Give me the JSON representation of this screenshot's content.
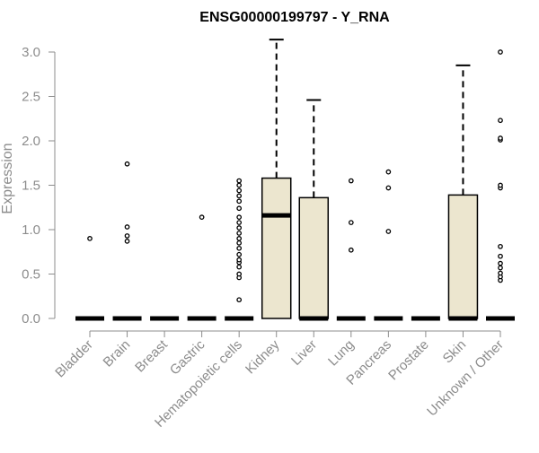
{
  "chart_data": {
    "type": "box",
    "title": "ENSG00000199797 - Y_RNA",
    "xlabel": "",
    "ylabel": "Expression",
    "ylim": [
      0,
      3.1
    ],
    "yticks": [
      "0.0",
      "0.5",
      "1.0",
      "1.5",
      "2.0",
      "2.5",
      "3.0"
    ],
    "grid": false,
    "box_fill": "#ece6cf",
    "box_stroke": "#000000",
    "axis_color": "#8c8c8c",
    "categories": [
      "Bladder",
      "Brain",
      "Breast",
      "Gastric",
      "Hematopoietic cells",
      "Kidney",
      "Liver",
      "Lung",
      "Pancreas",
      "Prostate",
      "Skin",
      "Unknown / Other"
    ],
    "boxes": [
      {
        "category": "Bladder",
        "q1": 0,
        "median": 0,
        "q3": 0,
        "whisker_low": 0,
        "whisker_high": 0,
        "outliers": [
          0.9
        ]
      },
      {
        "category": "Brain",
        "q1": 0,
        "median": 0,
        "q3": 0,
        "whisker_low": 0,
        "whisker_high": 0,
        "outliers": [
          0.87,
          0.93,
          1.03,
          1.74
        ]
      },
      {
        "category": "Breast",
        "q1": 0,
        "median": 0,
        "q3": 0,
        "whisker_low": 0,
        "whisker_high": 0,
        "outliers": []
      },
      {
        "category": "Gastric",
        "q1": 0,
        "median": 0,
        "q3": 0,
        "whisker_low": 0,
        "whisker_high": 0,
        "outliers": [
          1.14
        ]
      },
      {
        "category": "Hematopoietic cells",
        "q1": 0,
        "median": 0,
        "q3": 0,
        "whisker_low": 0,
        "whisker_high": 0,
        "outliers": [
          0.21,
          0.46,
          0.5,
          0.58,
          0.63,
          0.66,
          0.72,
          0.79,
          0.85,
          0.9,
          0.96,
          1.02,
          1.08,
          1.14,
          1.24,
          1.32,
          1.38,
          1.44,
          1.5,
          1.55
        ]
      },
      {
        "category": "Kidney",
        "q1": 0,
        "median": 1.16,
        "q3": 1.58,
        "whisker_low": 0,
        "whisker_high": 3.14,
        "outliers": []
      },
      {
        "category": "Liver",
        "q1": 0,
        "median": 0,
        "q3": 1.36,
        "whisker_low": 0,
        "whisker_high": 2.46,
        "outliers": []
      },
      {
        "category": "Lung",
        "q1": 0,
        "median": 0,
        "q3": 0,
        "whisker_low": 0,
        "whisker_high": 0,
        "outliers": [
          0.77,
          1.08,
          1.55
        ]
      },
      {
        "category": "Pancreas",
        "q1": 0,
        "median": 0,
        "q3": 0,
        "whisker_low": 0,
        "whisker_high": 0,
        "outliers": [
          0.98,
          1.47,
          1.65
        ]
      },
      {
        "category": "Prostate",
        "q1": 0,
        "median": 0,
        "q3": 0,
        "whisker_low": 0,
        "whisker_high": 0,
        "outliers": []
      },
      {
        "category": "Skin",
        "q1": 0,
        "median": 0,
        "q3": 1.39,
        "whisker_low": 0,
        "whisker_high": 2.85,
        "outliers": []
      },
      {
        "category": "Unknown / Other",
        "q1": 0,
        "median": 0,
        "q3": 0,
        "whisker_low": 0,
        "whisker_high": 0,
        "outliers": [
          0.43,
          0.47,
          0.51,
          0.57,
          0.62,
          0.7,
          0.81,
          1.47,
          1.5,
          2.01,
          2.03,
          2.23,
          3.0
        ]
      }
    ]
  }
}
